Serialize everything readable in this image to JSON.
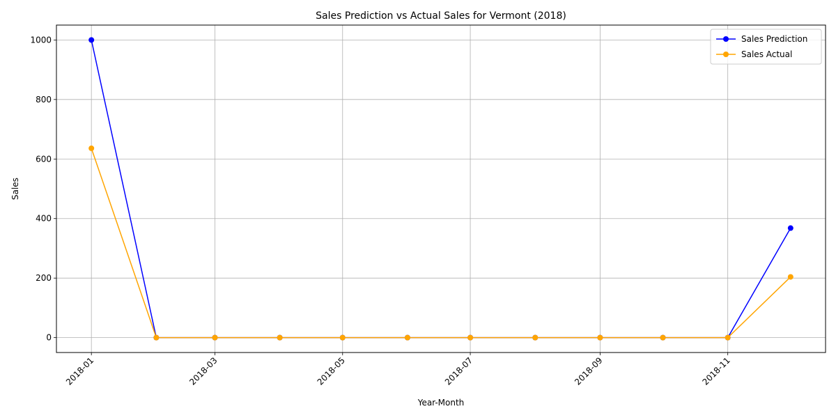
{
  "chart_data": {
    "type": "line",
    "title": "Sales Prediction vs Actual Sales for Vermont (2018)",
    "xlabel": "Year-Month",
    "ylabel": "Sales",
    "x": [
      "2018-01-01",
      "2018-02-01",
      "2018-03-01",
      "2018-04-01",
      "2018-05-01",
      "2018-06-01",
      "2018-07-01",
      "2018-08-01",
      "2018-09-01",
      "2018-10-01",
      "2018-11-01",
      "2018-12-01"
    ],
    "x_ticks": [
      "2018-01",
      "2018-03",
      "2018-05",
      "2018-07",
      "2018-09",
      "2018-11"
    ],
    "y_ticks": [
      0,
      200,
      400,
      600,
      800,
      1000
    ],
    "ylim": [
      -50,
      1050
    ],
    "grid": true,
    "legend_position": "top-right",
    "series": [
      {
        "name": "Sales Prediction",
        "color": "#0000ff",
        "marker": "circle",
        "values": [
          1000,
          0,
          0,
          0,
          0,
          0,
          0,
          0,
          0,
          0,
          0,
          368
        ]
      },
      {
        "name": "Sales Actual",
        "color": "#ffa500",
        "marker": "circle",
        "values": [
          636,
          0,
          0,
          0,
          0,
          0,
          0,
          0,
          0,
          0,
          0,
          204
        ]
      }
    ]
  }
}
